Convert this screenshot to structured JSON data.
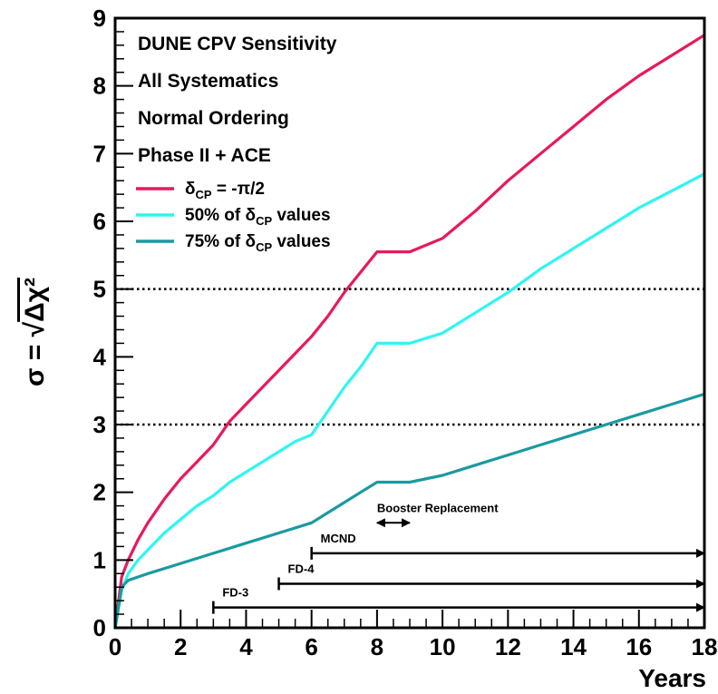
{
  "chart_data": {
    "type": "line",
    "xlabel": "Years",
    "ylabel": "σ = √Δχ²",
    "xlim": [
      0,
      18
    ],
    "ylim": [
      0,
      9
    ],
    "xticks": [
      0,
      2,
      4,
      6,
      8,
      10,
      12,
      14,
      16,
      18
    ],
    "yticks": [
      0,
      1,
      2,
      3,
      4,
      5,
      6,
      7,
      8,
      9
    ],
    "info_text": [
      "DUNE CPV Sensitivity",
      "All Systematics",
      "Normal Ordering",
      "Phase II + ACE"
    ],
    "legend_position": "top-left",
    "reference_lines": [
      {
        "y": 5,
        "style": "dotted"
      },
      {
        "y": 3,
        "style": "dotted"
      }
    ],
    "series": [
      {
        "name": "δCP = -π/2",
        "color": "#e8195a",
        "x": [
          0,
          0.2,
          0.4,
          0.7,
          1,
          1.5,
          2,
          2.5,
          3,
          3.5,
          4,
          4.5,
          5,
          5.5,
          6,
          6.5,
          7,
          7.5,
          8,
          9,
          10,
          11,
          12,
          13,
          14,
          15,
          16,
          17,
          18
        ],
        "y": [
          0,
          0.75,
          1.0,
          1.3,
          1.55,
          1.9,
          2.2,
          2.45,
          2.7,
          3.05,
          3.3,
          3.55,
          3.8,
          4.05,
          4.3,
          4.6,
          4.95,
          5.25,
          5.55,
          5.55,
          5.75,
          6.15,
          6.6,
          7.0,
          7.4,
          7.8,
          8.15,
          8.45,
          8.75
        ]
      },
      {
        "name": "50% of δCP values",
        "color": "#2ef5f2",
        "x": [
          0,
          0.2,
          0.4,
          0.7,
          1,
          1.5,
          2,
          2.5,
          3,
          3.5,
          4,
          4.5,
          5,
          5.5,
          6,
          6.5,
          7,
          7.5,
          8,
          9,
          10,
          11,
          12,
          13,
          14,
          15,
          16,
          17,
          18
        ],
        "y": [
          0,
          0.55,
          0.8,
          1.0,
          1.15,
          1.4,
          1.6,
          1.8,
          1.95,
          2.15,
          2.3,
          2.45,
          2.6,
          2.75,
          2.85,
          3.2,
          3.55,
          3.85,
          4.2,
          4.2,
          4.35,
          4.65,
          4.95,
          5.3,
          5.6,
          5.9,
          6.2,
          6.45,
          6.7
        ]
      },
      {
        "name": "75% of δCP values",
        "color": "#1a9aa0",
        "x": [
          0,
          0.2,
          0.4,
          1,
          2,
          3,
          4,
          5,
          6,
          6.5,
          7,
          7.5,
          8,
          9,
          10,
          11,
          12,
          13,
          14,
          15,
          16,
          17,
          18
        ],
        "y": [
          0,
          0.6,
          0.7,
          0.8,
          0.95,
          1.1,
          1.25,
          1.4,
          1.55,
          1.7,
          1.85,
          2.0,
          2.15,
          2.15,
          2.25,
          2.4,
          2.55,
          2.7,
          2.85,
          3.0,
          3.15,
          3.3,
          3.45
        ]
      }
    ],
    "annotations": [
      {
        "label": "Booster Replacement",
        "x_start": 8,
        "x_end": 9,
        "y": 1.55,
        "arrow": "double"
      },
      {
        "label": "MCND",
        "x_start": 6,
        "x_end": 18,
        "y": 1.1,
        "arrow": "right"
      },
      {
        "label": "FD-4",
        "x_start": 5,
        "x_end": 18,
        "y": 0.65,
        "arrow": "right"
      },
      {
        "label": "FD-3",
        "x_start": 3,
        "x_end": 18,
        "y": 0.3,
        "arrow": "right"
      }
    ]
  }
}
